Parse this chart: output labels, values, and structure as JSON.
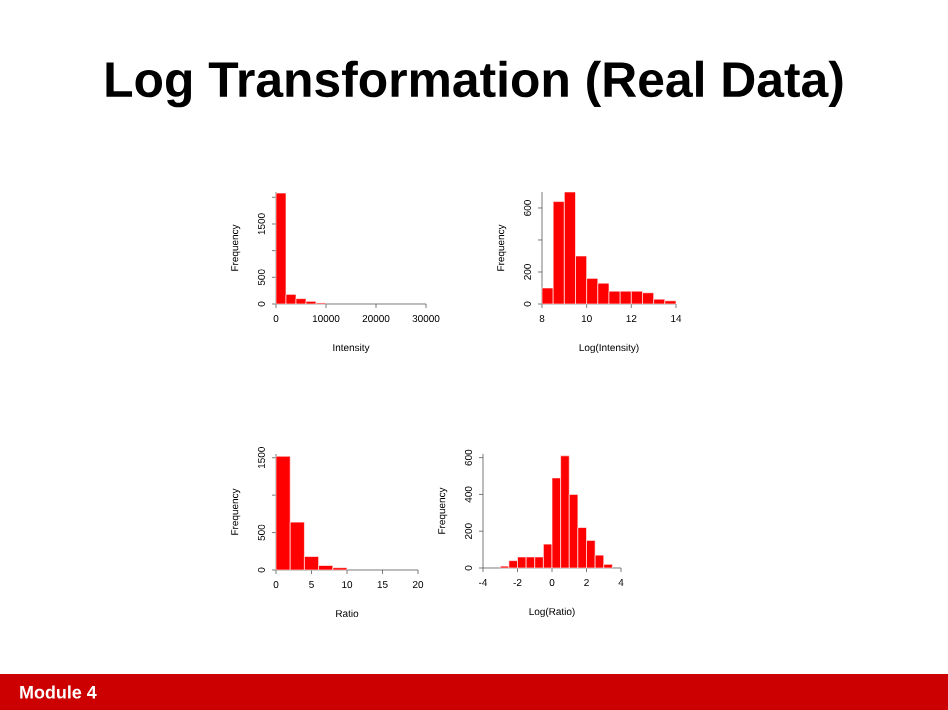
{
  "chart_data": [
    {
      "type": "histogram",
      "title": "Log Transformation (Real Data)",
      "annotations": [
        "Module 4"
      ],
      "xlabel": "Intensity",
      "ylabel": "Frequency",
      "color": "#ff0000",
      "bins": [
        0,
        2000,
        4000,
        6000,
        8000,
        10000
      ],
      "values": [
        2080,
        180,
        100,
        50,
        20
      ],
      "xlim": [
        0,
        30000
      ],
      "ylim": [
        0,
        2100
      ],
      "xticks": [
        0,
        10000,
        20000,
        30000
      ],
      "yticks": [
        0,
        500,
        {
          "value": 1000,
          "label": null
        },
        1500,
        {
          "value": 2000,
          "label": null
        }
      ]
    },
    {
      "type": "histogram",
      "xlabel": "Log(Intensity)",
      "ylabel": "Frequency",
      "color": "#ff0000",
      "bins": [
        8,
        8.5,
        9,
        9.5,
        10,
        10.5,
        11,
        11.5,
        12,
        12.5,
        13,
        13.5,
        14
      ],
      "values": [
        100,
        640,
        700,
        300,
        160,
        130,
        80,
        80,
        80,
        70,
        30,
        20
      ],
      "xlim": [
        8,
        14
      ],
      "ylim": [
        0,
        700
      ],
      "xticks": [
        8,
        10,
        12,
        14
      ],
      "yticks": [
        0,
        200,
        {
          "value": 400,
          "label": null
        },
        600
      ]
    },
    {
      "type": "histogram",
      "xlabel": "Ratio",
      "ylabel": "Frequency",
      "color": "#ff0000",
      "bins": [
        0,
        2,
        4,
        6,
        8,
        10
      ],
      "values": [
        1520,
        640,
        180,
        60,
        30
      ],
      "xlim": [
        0,
        20
      ],
      "ylim": [
        0,
        1550
      ],
      "xticks": [
        0,
        5,
        10,
        15,
        20
      ],
      "yticks": [
        0,
        500,
        {
          "value": 1000,
          "label": null
        },
        1500
      ]
    },
    {
      "type": "histogram",
      "xlabel": "Log(Ratio)",
      "ylabel": "Frequency",
      "color": "#ff0000",
      "bins": [
        -3,
        -2.5,
        -2,
        -1.5,
        -1,
        -0.5,
        0,
        0.5,
        1,
        1.5,
        2,
        2.5,
        3,
        3.5
      ],
      "values": [
        10,
        40,
        60,
        60,
        60,
        130,
        490,
        610,
        400,
        220,
        150,
        70,
        20
      ],
      "xlim": [
        -4,
        4
      ],
      "ylim": [
        0,
        620
      ],
      "xticks": [
        -4,
        -2,
        0,
        2,
        4
      ],
      "yticks": [
        0,
        200,
        400,
        600
      ]
    }
  ]
}
